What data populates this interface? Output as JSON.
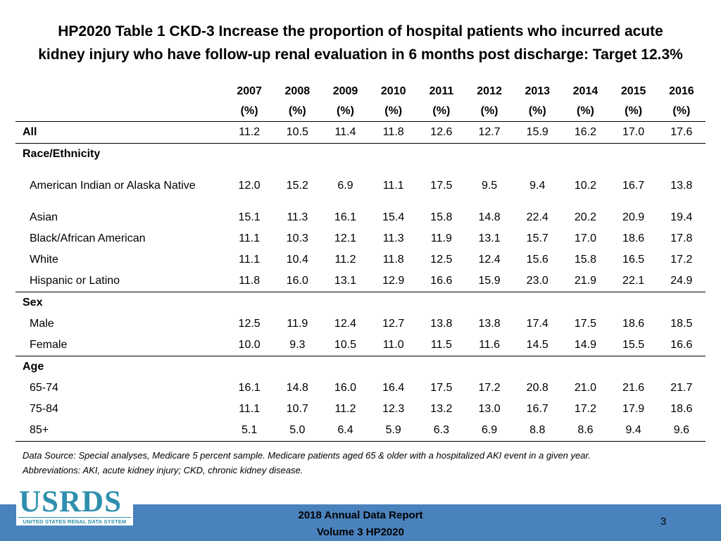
{
  "title_line1": "HP2020 Table 1 CKD-3 Increase the proportion of hospital patients who incurred acute",
  "title_line2": "kidney injury who have follow-up renal evaluation in 6 months post discharge: Target 12.3%",
  "years": [
    "2007",
    "2008",
    "2009",
    "2010",
    "2011",
    "2012",
    "2013",
    "2014",
    "2015",
    "2016"
  ],
  "unit": "(%)",
  "rows": {
    "all": {
      "label": "All",
      "values": [
        "11.2",
        "10.5",
        "11.4",
        "11.8",
        "12.6",
        "12.7",
        "15.9",
        "16.2",
        "17.0",
        "17.6"
      ]
    },
    "race_heading": "Race/Ethnicity",
    "aian": {
      "label": "American Indian or Alaska Native",
      "values": [
        "12.0",
        "15.2",
        "6.9",
        "11.1",
        "17.5",
        "9.5",
        "9.4",
        "10.2",
        "16.7",
        "13.8"
      ]
    },
    "asian": {
      "label": "Asian",
      "values": [
        "15.1",
        "11.3",
        "16.1",
        "15.4",
        "15.8",
        "14.8",
        "22.4",
        "20.2",
        "20.9",
        "19.4"
      ]
    },
    "black": {
      "label": "Black/African American",
      "values": [
        "11.1",
        "10.3",
        "12.1",
        "11.3",
        "11.9",
        "13.1",
        "15.7",
        "17.0",
        "18.6",
        "17.8"
      ]
    },
    "white": {
      "label": "White",
      "values": [
        "11.1",
        "10.4",
        "11.2",
        "11.8",
        "12.5",
        "12.4",
        "15.6",
        "15.8",
        "16.5",
        "17.2"
      ]
    },
    "hispanic": {
      "label": "Hispanic or Latino",
      "values": [
        "11.8",
        "16.0",
        "13.1",
        "12.9",
        "16.6",
        "15.9",
        "23.0",
        "21.9",
        "22.1",
        "24.9"
      ]
    },
    "sex_heading": "Sex",
    "male": {
      "label": "Male",
      "values": [
        "12.5",
        "11.9",
        "12.4",
        "12.7",
        "13.8",
        "13.8",
        "17.4",
        "17.5",
        "18.6",
        "18.5"
      ]
    },
    "female": {
      "label": "Female",
      "values": [
        "10.0",
        "9.3",
        "10.5",
        "11.0",
        "11.5",
        "11.6",
        "14.5",
        "14.9",
        "15.5",
        "16.6"
      ]
    },
    "age_heading": "Age",
    "age6574": {
      "label": "65-74",
      "values": [
        "16.1",
        "14.8",
        "16.0",
        "16.4",
        "17.5",
        "17.2",
        "20.8",
        "21.0",
        "21.6",
        "21.7"
      ]
    },
    "age7584": {
      "label": "75-84",
      "values": [
        "11.1",
        "10.7",
        "11.2",
        "12.3",
        "13.2",
        "13.0",
        "16.7",
        "17.2",
        "17.9",
        "18.6"
      ]
    },
    "age85": {
      "label": "85+",
      "values": [
        "5.1",
        "5.0",
        "6.4",
        "5.9",
        "6.3",
        "6.9",
        "8.8",
        "8.6",
        "9.4",
        "9.6"
      ]
    }
  },
  "source_line1": "Data Source: Special analyses, Medicare 5 percent sample. Medicare patients aged 65 & older with a hospitalized AKI event in a given year.",
  "source_line2": "Abbreviations: AKI, acute kidney injury; CKD, chronic kidney disease.",
  "logo": {
    "text": "USRDS",
    "subtitle": "UNITED STATES RENAL DATA SYSTEM"
  },
  "footer": {
    "line1": "2018 Annual Data Report",
    "line2": "Volume 3 HP2020",
    "page": "3"
  },
  "colors": {
    "footer_bar": "#4a82bd",
    "logo": "#2f8fae"
  }
}
